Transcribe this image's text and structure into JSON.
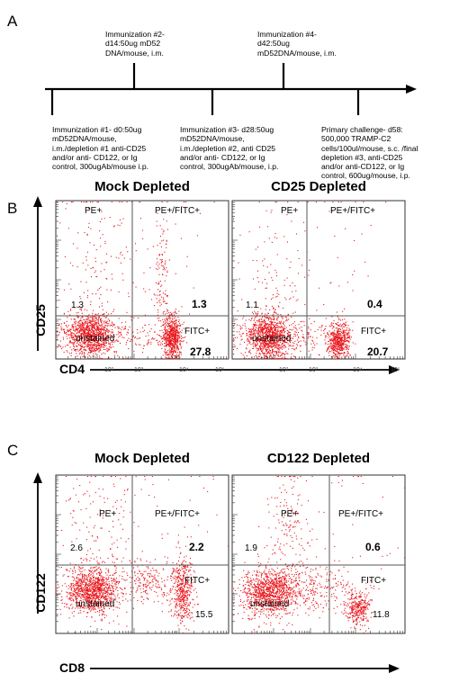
{
  "panels": {
    "a": {
      "letter": "A",
      "timeline": [
        {
          "lines": [
            "Immunization #1-  d0:50ug",
            "mD52DNA/mouse,",
            "i.m./depletion #1 anti-CD25",
            "and/or anti- CD122, or Ig",
            "control, 300ugAb/mouse i.p."
          ]
        },
        {
          "lines": [
            "Immunization #2-",
            "d14:50ug mD52",
            "DNA/mouse, i.m."
          ]
        },
        {
          "lines": [
            "Immunization #3-  d28:50ug",
            "mD52DNA/mouse,",
            "i.m./depletion #2, anti CD25",
            "and/or anti- CD122, or Ig",
            "control, 300ugAb/mouse, i.p."
          ]
        },
        {
          "lines": [
            "Immunization #4-",
            "d42:50ug",
            "mD52DNA/mouse, i.m."
          ]
        },
        {
          "lines": [
            "Primary challenge- d58:",
            "500,000 TRAMP-C2",
            "cells/100ul/mouse, s.c. /final",
            "depletion #3, anti-CD25",
            "and/or anti-CD122, or Ig",
            "control, 600ug/mouse, i.p."
          ]
        }
      ]
    },
    "b": {
      "letter": "B",
      "y_axis_label": "CD25",
      "x_axis_label": "CD4",
      "plots": [
        {
          "title": "Mock Depleted",
          "pe": "PE+",
          "pefitc": "PE+/FITC+",
          "fitc": "FITC+",
          "unstained": "unstained",
          "ul_value": "1.3",
          "ur_value": "1.3",
          "lr_value": "27.8"
        },
        {
          "title": "CD25 Depleted",
          "pe": "PE+",
          "pefitc": "PE+/FITC+",
          "fitc": "FITC+",
          "unstained": "unstained",
          "ul_value": "1.1",
          "ur_value": "0.4",
          "lr_value": "20.7"
        }
      ]
    },
    "c": {
      "letter": "C",
      "y_axis_label": "CD122",
      "x_axis_label": "CD8",
      "plots": [
        {
          "title": "Mock Depleted",
          "pe": "PE+",
          "pefitc": "PE+/FITC+",
          "fitc": "FITC+",
          "unstained": "unstained",
          "ul_value": "2.6",
          "ur_value": "2.2",
          "lr_value": "15.5"
        },
        {
          "title": "CD122 Depleted",
          "pe": "PE+",
          "pefitc": "PE+/FITC+",
          "fitc": "FITC+",
          "unstained": "unstained",
          "ul_value": "1.9",
          "ur_value": "0.6",
          "lr_value": "11.8"
        }
      ]
    }
  },
  "x_tick_labels": [
    "10²",
    "10³",
    "10⁴",
    "10⁵"
  ],
  "colors": {
    "dots": "#e8161b",
    "gate": "#555555",
    "frame": "#333333"
  }
}
